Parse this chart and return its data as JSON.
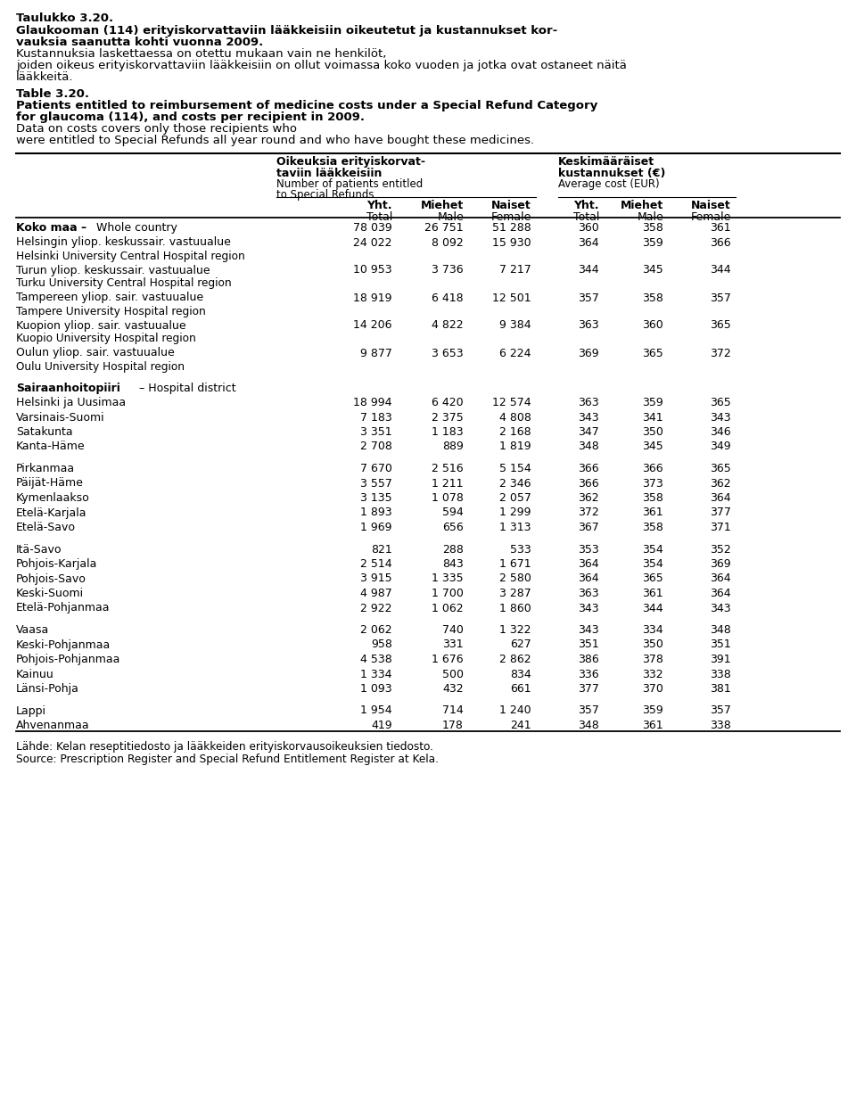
{
  "rows": [
    {
      "label": "Koko maa – Whole country",
      "bold": "mixed_first",
      "values": [
        "78 039",
        "26 751",
        "51 288",
        "360",
        "358",
        "361"
      ],
      "space_before": false,
      "two_lines": false
    },
    {
      "label": [
        "Helsingin yliop. keskussair. vastuualue",
        "Helsinki University Central Hospital region"
      ],
      "bold": false,
      "values": [
        "24 022",
        "8 092",
        "15 930",
        "364",
        "359",
        "366"
      ],
      "space_before": false,
      "two_lines": true
    },
    {
      "label": [
        "Turun yliop. keskussair. vastuualue",
        "Turku University Central Hospital region"
      ],
      "bold": false,
      "values": [
        "10 953",
        "3 736",
        "7 217",
        "344",
        "345",
        "344"
      ],
      "space_before": false,
      "two_lines": true
    },
    {
      "label": [
        "Tampereen yliop. sair. vastuualue",
        "Tampere University Hospital region"
      ],
      "bold": false,
      "values": [
        "18 919",
        "6 418",
        "12 501",
        "357",
        "358",
        "357"
      ],
      "space_before": false,
      "two_lines": true
    },
    {
      "label": [
        "Kuopion yliop. sair. vastuualue",
        "Kuopio University Hospital region"
      ],
      "bold": false,
      "values": [
        "14 206",
        "4 822",
        "9 384",
        "363",
        "360",
        "365"
      ],
      "space_before": false,
      "two_lines": true
    },
    {
      "label": [
        "Oulun yliop. sair. vastuualue",
        "Oulu University Hospital region"
      ],
      "bold": false,
      "values": [
        "9 877",
        "3 653",
        "6 224",
        "369",
        "365",
        "372"
      ],
      "space_before": false,
      "two_lines": true
    },
    {
      "label": "Sairaanhoitopiiri – Hospital district",
      "bold": "mixed_first",
      "values": [
        "",
        "",
        "",
        "",
        "",
        ""
      ],
      "space_before": true,
      "two_lines": false
    },
    {
      "label": "Helsinki ja Uusimaa",
      "bold": false,
      "values": [
        "18 994",
        "6 420",
        "12 574",
        "363",
        "359",
        "365"
      ],
      "space_before": false,
      "two_lines": false
    },
    {
      "label": "Varsinais-Suomi",
      "bold": false,
      "values": [
        "7 183",
        "2 375",
        "4 808",
        "343",
        "341",
        "343"
      ],
      "space_before": false,
      "two_lines": false
    },
    {
      "label": "Satakunta",
      "bold": false,
      "values": [
        "3 351",
        "1 183",
        "2 168",
        "347",
        "350",
        "346"
      ],
      "space_before": false,
      "two_lines": false
    },
    {
      "label": "Kanta-Häme",
      "bold": false,
      "values": [
        "2 708",
        "889",
        "1 819",
        "348",
        "345",
        "349"
      ],
      "space_before": false,
      "two_lines": false
    },
    {
      "label": "Pirkanmaa",
      "bold": false,
      "values": [
        "7 670",
        "2 516",
        "5 154",
        "366",
        "366",
        "365"
      ],
      "space_before": true,
      "two_lines": false
    },
    {
      "label": "Päijät-Häme",
      "bold": false,
      "values": [
        "3 557",
        "1 211",
        "2 346",
        "366",
        "373",
        "362"
      ],
      "space_before": false,
      "two_lines": false
    },
    {
      "label": "Kymenlaakso",
      "bold": false,
      "values": [
        "3 135",
        "1 078",
        "2 057",
        "362",
        "358",
        "364"
      ],
      "space_before": false,
      "two_lines": false
    },
    {
      "label": "Etelä-Karjala",
      "bold": false,
      "values": [
        "1 893",
        "594",
        "1 299",
        "372",
        "361",
        "377"
      ],
      "space_before": false,
      "two_lines": false
    },
    {
      "label": "Etelä-Savo",
      "bold": false,
      "values": [
        "1 969",
        "656",
        "1 313",
        "367",
        "358",
        "371"
      ],
      "space_before": false,
      "two_lines": false
    },
    {
      "label": "Itä-Savo",
      "bold": false,
      "values": [
        "821",
        "288",
        "533",
        "353",
        "354",
        "352"
      ],
      "space_before": true,
      "two_lines": false
    },
    {
      "label": "Pohjois-Karjala",
      "bold": false,
      "values": [
        "2 514",
        "843",
        "1 671",
        "364",
        "354",
        "369"
      ],
      "space_before": false,
      "two_lines": false
    },
    {
      "label": "Pohjois-Savo",
      "bold": false,
      "values": [
        "3 915",
        "1 335",
        "2 580",
        "364",
        "365",
        "364"
      ],
      "space_before": false,
      "two_lines": false
    },
    {
      "label": "Keski-Suomi",
      "bold": false,
      "values": [
        "4 987",
        "1 700",
        "3 287",
        "363",
        "361",
        "364"
      ],
      "space_before": false,
      "two_lines": false
    },
    {
      "label": "Etelä-Pohjanmaa",
      "bold": false,
      "values": [
        "2 922",
        "1 062",
        "1 860",
        "343",
        "344",
        "343"
      ],
      "space_before": false,
      "two_lines": false
    },
    {
      "label": "Vaasa",
      "bold": false,
      "values": [
        "2 062",
        "740",
        "1 322",
        "343",
        "334",
        "348"
      ],
      "space_before": true,
      "two_lines": false
    },
    {
      "label": "Keski-Pohjanmaa",
      "bold": false,
      "values": [
        "958",
        "331",
        "627",
        "351",
        "350",
        "351"
      ],
      "space_before": false,
      "two_lines": false
    },
    {
      "label": "Pohjois-Pohjanmaa",
      "bold": false,
      "values": [
        "4 538",
        "1 676",
        "2 862",
        "386",
        "378",
        "391"
      ],
      "space_before": false,
      "two_lines": false
    },
    {
      "label": "Kainuu",
      "bold": false,
      "values": [
        "1 334",
        "500",
        "834",
        "336",
        "332",
        "338"
      ],
      "space_before": false,
      "two_lines": false
    },
    {
      "label": "Länsi-Pohja",
      "bold": false,
      "values": [
        "1 093",
        "432",
        "661",
        "377",
        "370",
        "381"
      ],
      "space_before": false,
      "two_lines": false
    },
    {
      "label": "Lappi",
      "bold": false,
      "values": [
        "1 954",
        "714",
        "1 240",
        "357",
        "359",
        "357"
      ],
      "space_before": true,
      "two_lines": false
    },
    {
      "label": "Ahvenanmaa",
      "bold": false,
      "values": [
        "419",
        "178",
        "241",
        "348",
        "361",
        "338"
      ],
      "space_before": false,
      "two_lines": false
    }
  ],
  "footnote_fi": "Lähde: Kelan reseptitiedosto ja lääkkeiden erityiskorvausoikeuksien tiedosto.",
  "footnote_en": "Source: Prescription Register and Special Refund Entitlement Register at Kela."
}
